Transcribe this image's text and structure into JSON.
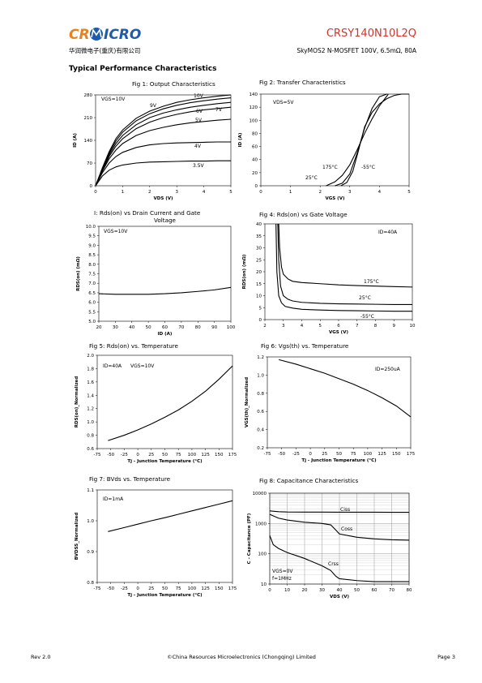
{
  "header": {
    "logo": [
      "CR",
      "ICRO"
    ],
    "part_number": "CRSY140N10L2Q",
    "company_cn": "华润微电子(重庆)有限公司",
    "subtitle": "SkyMOS2 N-MOSFET 100V, 6.5mΩ, 80A"
  },
  "section_title": "Typical Performance Characteristics",
  "footer": {
    "rev": "Rev 2.0",
    "company": "©China Resources Microelectronics (Chongqing) Limited",
    "page": "Page 3"
  },
  "chart_data": [
    {
      "type": "line",
      "title": "Fig 1: Output Characteristics",
      "xlabel": "VDS (V)",
      "ylabel": "ID (A)",
      "annotations": [
        "VGS=10V"
      ],
      "x": [
        0,
        0.25,
        0.5,
        0.75,
        1,
        1.5,
        2,
        2.5,
        3,
        3.5,
        4,
        4.5,
        5
      ],
      "xlim": [
        0,
        5
      ],
      "xticks": [
        0,
        1,
        2,
        3,
        4,
        5
      ],
      "ylim": [
        0,
        280
      ],
      "yticks": [
        0,
        70,
        140,
        210,
        280
      ],
      "grid": false,
      "series": [
        {
          "name": "10V",
          "color": "#000000",
          "values": [
            0,
            55,
            105,
            145,
            172,
            208,
            230,
            245,
            257,
            265,
            271,
            276,
            280
          ]
        },
        {
          "name": "9V",
          "color": "#000000",
          "values": [
            0,
            52,
            100,
            138,
            165,
            200,
            222,
            237,
            248,
            256,
            262,
            267,
            271
          ]
        },
        {
          "name": "7V",
          "color": "#000000",
          "values": [
            0,
            50,
            95,
            130,
            155,
            188,
            210,
            224,
            234,
            242,
            248,
            253,
            257
          ]
        },
        {
          "name": "6V",
          "color": "#000000",
          "values": [
            0,
            48,
            90,
            122,
            145,
            176,
            196,
            210,
            220,
            228,
            234,
            238,
            242
          ]
        },
        {
          "name": "5V",
          "color": "#000000",
          "values": [
            0,
            45,
            83,
            110,
            130,
            155,
            170,
            180,
            188,
            194,
            198,
            202,
            205
          ]
        },
        {
          "name": "4V",
          "color": "#000000",
          "values": [
            0,
            40,
            70,
            90,
            103,
            118,
            126,
            130,
            132,
            133,
            134,
            135,
            135
          ]
        },
        {
          "name": "3.5V",
          "color": "#000000",
          "values": [
            0,
            30,
            48,
            58,
            64,
            70,
            73,
            74,
            75,
            76,
            76,
            77,
            77
          ]
        }
      ]
    },
    {
      "type": "line",
      "title": "Fig 2: Transfer Characteristics",
      "xlabel": "VGS (V)",
      "ylabel": "ID (A)",
      "annotations": [
        "VDS=5V"
      ],
      "xlim": [
        0,
        5
      ],
      "xticks": [
        0,
        1,
        2,
        3,
        4,
        5
      ],
      "ylim": [
        0,
        140
      ],
      "yticks": [
        0,
        20,
        40,
        60,
        80,
        100,
        120,
        140
      ],
      "grid": false,
      "series": [
        {
          "name": "175°C",
          "color": "#000000",
          "x": [
            2.2,
            2.5,
            2.75,
            3,
            3.25,
            3.5,
            3.75,
            4,
            4.3
          ],
          "values": [
            0,
            6,
            16,
            32,
            55,
            80,
            102,
            122,
            140
          ]
        },
        {
          "name": "25°C",
          "color": "#000000",
          "x": [
            2.5,
            2.75,
            3,
            3.25,
            3.5,
            3.75,
            4,
            4.25
          ],
          "values": [
            0,
            4,
            18,
            50,
            88,
            118,
            136,
            140
          ]
        },
        {
          "name": "-55°C",
          "color": "#000000",
          "x": [
            2.7,
            2.9,
            3.1,
            3.3,
            3.5,
            3.75,
            4,
            4.25,
            4.5,
            4.75,
            5
          ],
          "values": [
            0,
            5,
            22,
            55,
            90,
            112,
            125,
            133,
            138,
            140,
            140
          ]
        }
      ]
    },
    {
      "type": "line",
      "title_lines": [
        "I: Rds(on) vs Drain Current and Gate",
        "Voltage"
      ],
      "xlabel": "ID (A)",
      "ylabel": "RDS(on) (mΩ)",
      "annotations": [
        "VGS=10V"
      ],
      "x": [
        20,
        30,
        40,
        50,
        60,
        70,
        80,
        90,
        100
      ],
      "xlim": [
        20,
        100
      ],
      "xticks": [
        20,
        30,
        40,
        50,
        60,
        70,
        80,
        90,
        100
      ],
      "ylim": [
        5,
        10
      ],
      "yticks": [
        {
          "value": 5,
          "label": "5.0"
        },
        5.5,
        {
          "value": 6,
          "label": "6.0"
        },
        6.5,
        {
          "value": 7,
          "label": "7.0"
        },
        7.5,
        {
          "value": 8,
          "label": "8.0"
        },
        8.5,
        {
          "value": 9,
          "label": "9.0"
        },
        9.5,
        {
          "value": 10,
          "label": "10.0"
        }
      ],
      "grid": false,
      "series": [
        {
          "name": null,
          "color": "#000000",
          "values": [
            6.45,
            6.42,
            6.42,
            6.42,
            6.45,
            6.5,
            6.57,
            6.65,
            6.78
          ]
        }
      ]
    },
    {
      "type": "line",
      "title": "Fig 4: Rds(on) vs Gate Voltage",
      "xlabel": "VGS (V)",
      "ylabel": "RDS(on) (mΩ)",
      "annotations": [
        "ID=40A"
      ],
      "xlim": [
        2,
        10
      ],
      "xticks": [
        2,
        3,
        4,
        5,
        6,
        7,
        8,
        9,
        10
      ],
      "ylim": [
        0,
        40
      ],
      "yticks": [
        0,
        5,
        10,
        15,
        20,
        25,
        30,
        35,
        40
      ],
      "grid": false,
      "series": [
        {
          "name": "175°C",
          "color": "#000000",
          "x": [
            2.75,
            2.8,
            2.9,
            3,
            3.25,
            3.5,
            4,
            5,
            6,
            7,
            8,
            9,
            10
          ],
          "values": [
            40,
            30,
            22,
            19,
            17,
            16,
            15.5,
            15,
            14.5,
            14.2,
            14,
            13.8,
            13.6
          ]
        },
        {
          "name": "25°C",
          "color": "#000000",
          "x": [
            2.7,
            2.75,
            2.85,
            3,
            3.25,
            3.5,
            4,
            5,
            6,
            7,
            8,
            9,
            10
          ],
          "values": [
            40,
            25,
            14,
            10,
            8.5,
            7.8,
            7.2,
            6.8,
            6.6,
            6.5,
            6.4,
            6.3,
            6.3
          ]
        },
        {
          "name": "-55°C",
          "color": "#000000",
          "x": [
            2.6,
            2.65,
            2.75,
            2.9,
            3.1,
            3.5,
            4,
            5,
            6,
            7,
            8,
            9,
            10
          ],
          "values": [
            40,
            20,
            10,
            7,
            5.5,
            4.8,
            4.3,
            4,
            3.8,
            3.7,
            3.6,
            3.5,
            3.5
          ]
        }
      ]
    },
    {
      "type": "line",
      "title": "Fig 5: Rds(on) vs. Temperature",
      "xlabel": "Tj - Junction Temperature (°C)",
      "ylabel": "RDS(on)_Normalized",
      "annotations": [
        "ID=40A",
        "VGS=10V"
      ],
      "x": [
        -55,
        -25,
        0,
        25,
        50,
        75,
        100,
        125,
        150,
        175
      ],
      "xlim": [
        -75,
        175
      ],
      "xticks": [
        -75,
        -50,
        -25,
        0,
        25,
        50,
        75,
        100,
        125,
        150,
        175
      ],
      "ylim": [
        0.6,
        2
      ],
      "yticks": [
        0.6,
        0.8,
        {
          "value": 1,
          "label": "1.0"
        },
        1.2,
        1.4,
        1.6,
        1.8,
        {
          "value": 2,
          "label": "2.0"
        }
      ],
      "grid": false,
      "series": [
        {
          "name": null,
          "color": "#000000",
          "values": [
            0.72,
            0.8,
            0.88,
            0.97,
            1.07,
            1.18,
            1.31,
            1.46,
            1.64,
            1.84
          ]
        }
      ]
    },
    {
      "type": "line",
      "title": "Fig 6: Vgs(th) vs. Temperature",
      "xlabel": "Tj - Junction Temperature (°C)",
      "ylabel": "VGS(th)_Normalized",
      "annotations": [
        "ID=250uA"
      ],
      "x": [
        -55,
        -25,
        0,
        25,
        50,
        75,
        100,
        125,
        150,
        175
      ],
      "xlim": [
        -75,
        175
      ],
      "xticks": [
        -75,
        -50,
        -25,
        0,
        25,
        50,
        75,
        100,
        125,
        150,
        175
      ],
      "ylim": [
        0.2,
        1.2
      ],
      "yticks": [
        0.2,
        0.4,
        0.6,
        0.8,
        {
          "value": 1,
          "label": "1.0"
        },
        1.2
      ],
      "grid": false,
      "series": [
        {
          "name": null,
          "color": "#000000",
          "values": [
            1.17,
            1.12,
            1.07,
            1.02,
            0.96,
            0.9,
            0.83,
            0.75,
            0.66,
            0.54
          ]
        }
      ]
    },
    {
      "type": "line",
      "title": "Fig 7: BVds vs. Temperature",
      "xlabel": "Tj - Junction Temperature (°C)",
      "ylabel": "BVDSS_Normalized",
      "annotations": [
        "ID=1mA"
      ],
      "x": [
        -55,
        -25,
        0,
        25,
        50,
        75,
        100,
        125,
        150,
        175
      ],
      "xlim": [
        -75,
        175
      ],
      "xticks": [
        -75,
        -50,
        -25,
        0,
        25,
        50,
        75,
        100,
        125,
        150,
        175
      ],
      "ylim": [
        0.8,
        1.1
      ],
      "yticks": [
        0.8,
        0.9,
        {
          "value": 1,
          "label": "1.0"
        },
        1.1
      ],
      "grid": false,
      "series": [
        {
          "name": null,
          "color": "#000000",
          "values": [
            0.965,
            0.978,
            0.989,
            1.0,
            1.01,
            1.021,
            1.032,
            1.043,
            1.054,
            1.065
          ]
        }
      ]
    },
    {
      "type": "line",
      "title": "Fig 8: Capacitance Characteristics",
      "xlabel": "VDS (V)",
      "ylabel": "C - Capacitance (PF)",
      "annotations": [
        "VGS=0V",
        "f=1MHz"
      ],
      "xlim": [
        0,
        80
      ],
      "xticks": [
        0,
        10,
        20,
        30,
        40,
        50,
        60,
        70,
        80
      ],
      "ylim": [
        10,
        10000
      ],
      "yticks": [
        10,
        100,
        1000,
        10000
      ],
      "log_y": true,
      "grid": true,
      "series": [
        {
          "name": "Ciss",
          "color": "#000000",
          "x": [
            0,
            5,
            10,
            20,
            30,
            40,
            50,
            60,
            70,
            80
          ],
          "values": [
            2600,
            2450,
            2400,
            2380,
            2370,
            2360,
            2350,
            2350,
            2340,
            2340
          ]
        },
        {
          "name": "Coss",
          "color": "#000000",
          "x": [
            0,
            5,
            10,
            20,
            30,
            35,
            38,
            40,
            50,
            60,
            70,
            80
          ],
          "values": [
            2000,
            1500,
            1300,
            1100,
            1000,
            900,
            600,
            450,
            350,
            310,
            290,
            280
          ]
        },
        {
          "name": "Crss",
          "color": "#000000",
          "x": [
            0,
            2,
            5,
            10,
            20,
            30,
            35,
            38,
            40,
            50,
            60,
            70,
            80
          ],
          "values": [
            400,
            200,
            150,
            110,
            70,
            40,
            28,
            18,
            15,
            13,
            12,
            12,
            12
          ]
        }
      ]
    }
  ]
}
